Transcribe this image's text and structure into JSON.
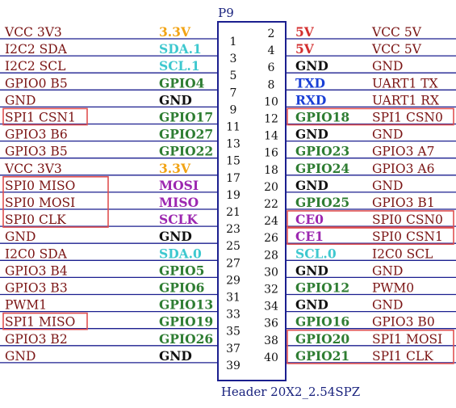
{
  "header": {
    "title": "P9",
    "footer": "Header 20X2_2.54SPZ"
  },
  "colors": {
    "line": "#1b1f8f",
    "signal": "#7a1414",
    "highlight_box": "#e05050",
    "power": "#f2a313",
    "i2c": "#3ec8cf",
    "gpio": "#2e7d32",
    "spi": "#9c27b0",
    "ground": "#111111",
    "vcc5": "#d32f2f",
    "uart": "#1a3fd6"
  },
  "rows": [
    {
      "left_signal": "VCC_3V3",
      "left_alt": "3.3V",
      "left_type": "power",
      "pin_left": "1",
      "pin_right": "2",
      "right_alt": "5V",
      "right_type": "vcc5",
      "right_signal": "VCC_5V"
    },
    {
      "left_signal": "I2C2_SDA",
      "left_alt": "SDA.1",
      "left_type": "i2c",
      "pin_left": "3",
      "pin_right": "4",
      "right_alt": "5V",
      "right_type": "vcc5",
      "right_signal": "VCC_5V"
    },
    {
      "left_signal": "I2C2_SCL",
      "left_alt": "SCL.1",
      "left_type": "i2c",
      "pin_left": "5",
      "pin_right": "6",
      "right_alt": "GND",
      "right_type": "ground",
      "right_signal": "GND"
    },
    {
      "left_signal": "GPIO0_B5",
      "left_alt": "GPIO4",
      "left_type": "gpio",
      "pin_left": "7",
      "pin_right": "8",
      "right_alt": "TXD",
      "right_type": "uart",
      "right_signal": "UART1_TX"
    },
    {
      "left_signal": "GND",
      "left_alt": "GND",
      "left_type": "ground",
      "pin_left": "9",
      "pin_right": "10",
      "right_alt": "RXD",
      "right_type": "uart",
      "right_signal": "UART1_RX"
    },
    {
      "left_signal": "SPI1_CSN1",
      "left_alt": "GPIO17",
      "left_type": "gpio",
      "pin_left": "11",
      "pin_right": "12",
      "right_alt": "GPIO18",
      "right_type": "gpio",
      "right_signal": "SPI1_CSN0"
    },
    {
      "left_signal": "GPIO3_B6",
      "left_alt": "GPIO27",
      "left_type": "gpio",
      "pin_left": "13",
      "pin_right": "14",
      "right_alt": "GND",
      "right_type": "ground",
      "right_signal": "GND"
    },
    {
      "left_signal": "GPIO3_B5",
      "left_alt": "GPIO22",
      "left_type": "gpio",
      "pin_left": "15",
      "pin_right": "16",
      "right_alt": "GPIO23",
      "right_type": "gpio",
      "right_signal": "GPIO3_A7"
    },
    {
      "left_signal": "VCC_3V3",
      "left_alt": "3.3V",
      "left_type": "power",
      "pin_left": "17",
      "pin_right": "18",
      "right_alt": "GPIO24",
      "right_type": "gpio",
      "right_signal": "GPIO3_A6"
    },
    {
      "left_signal": "SPI0_MISO",
      "left_alt": "MOSI",
      "left_type": "spi",
      "pin_left": "19",
      "pin_right": "20",
      "right_alt": "GND",
      "right_type": "ground",
      "right_signal": "GND"
    },
    {
      "left_signal": "SPI0_MOSI",
      "left_alt": "MISO",
      "left_type": "spi",
      "pin_left": "21",
      "pin_right": "22",
      "right_alt": "GPIO25",
      "right_type": "gpio",
      "right_signal": "GPIO3_B1"
    },
    {
      "left_signal": "SPI0_CLK",
      "left_alt": "SCLK",
      "left_type": "spi",
      "pin_left": "23",
      "pin_right": "24",
      "right_alt": "CE0",
      "right_type": "spi",
      "right_signal": "SPI0_CSN0"
    },
    {
      "left_signal": "GND",
      "left_alt": "GND",
      "left_type": "ground",
      "pin_left": "25",
      "pin_right": "26",
      "right_alt": "CE1",
      "right_type": "spi",
      "right_signal": "SPI0_CSN1"
    },
    {
      "left_signal": "I2C0_SDA",
      "left_alt": "SDA.0",
      "left_type": "i2c",
      "pin_left": "27",
      "pin_right": "28",
      "right_alt": "SCL.0",
      "right_type": "i2c",
      "right_signal": "I2C0_SCL"
    },
    {
      "left_signal": "GPIO3_B4",
      "left_alt": "GPIO5",
      "left_type": "gpio",
      "pin_left": "29",
      "pin_right": "30",
      "right_alt": "GND",
      "right_type": "ground",
      "right_signal": "GND"
    },
    {
      "left_signal": "GPIO3_B3",
      "left_alt": "GPIO6",
      "left_type": "gpio",
      "pin_left": "31",
      "pin_right": "32",
      "right_alt": "GPIO12",
      "right_type": "gpio",
      "right_signal": "PWM0"
    },
    {
      "left_signal": "PWM1",
      "left_alt": "GPIO13",
      "left_type": "gpio",
      "pin_left": "33",
      "pin_right": "34",
      "right_alt": "GND",
      "right_type": "ground",
      "right_signal": "GND"
    },
    {
      "left_signal": "SPI1_MISO",
      "left_alt": "GPIO19",
      "left_type": "gpio",
      "pin_left": "35",
      "pin_right": "36",
      "right_alt": "GPIO16",
      "right_type": "gpio",
      "right_signal": "GPIO3_B0"
    },
    {
      "left_signal": "GPIO3_B2",
      "left_alt": "GPIO26",
      "left_type": "gpio",
      "pin_left": "37",
      "pin_right": "38",
      "right_alt": "GPIO20",
      "right_type": "gpio",
      "right_signal": "SPI1_MOSI"
    },
    {
      "left_signal": "GND",
      "left_alt": "GND",
      "left_type": "ground",
      "pin_left": "39",
      "pin_right": "40",
      "right_alt": "GPIO21",
      "right_type": "gpio",
      "right_signal": "SPI1_CLK"
    }
  ]
}
